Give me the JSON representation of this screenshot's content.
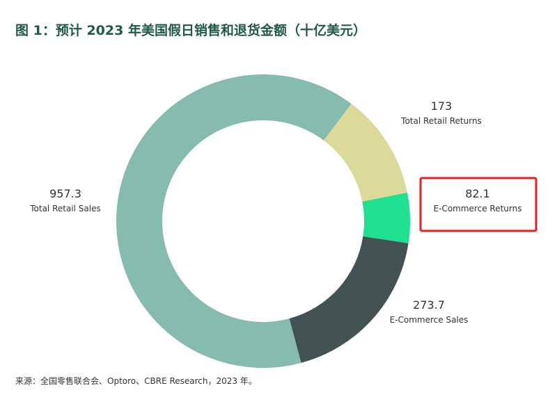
{
  "chart_data": {
    "type": "pie",
    "title": "图 1：预计 2023 年美国假日销售和退货金额（十亿美元）",
    "categories": [
      "Total Retail Sales",
      "Total Retail Returns",
      "E-Commerce Returns",
      "E-Commerce Sales"
    ],
    "values": [
      957.3,
      173,
      82.1,
      273.7
    ],
    "colors": [
      "#85bcad",
      "#ddd99a",
      "#1fe08f",
      "#435354"
    ],
    "donut": true,
    "note": "来源：全国零售联合会、Optoro、CBRE Research，2023 年。"
  }
}
